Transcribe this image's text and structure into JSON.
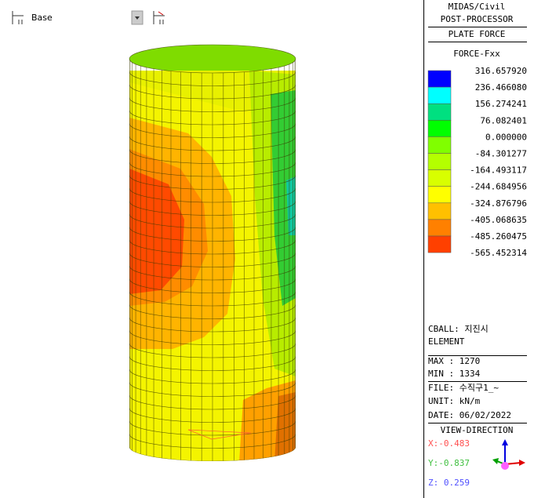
{
  "toolbar": {
    "base_label": "Base"
  },
  "legend": {
    "title": [
      "MIDAS/Civil",
      "POST-PROCESSOR"
    ],
    "result_type": "PLATE FORCE",
    "component": "FORCE-Fxx",
    "levels": [
      "316.657920",
      "236.466080",
      "156.274241",
      "76.082401",
      "0.000000",
      "-84.301277",
      "-164.493117",
      "-244.684956",
      "-324.876796",
      "-405.068635",
      "-485.260475",
      "-565.452314"
    ]
  },
  "info": {
    "cball": "CBALL: 지진시",
    "element": "ELEMENT",
    "max": "MAX : 1270",
    "min": "MIN : 1334",
    "file": "FILE: 수직구1_~",
    "unit": "UNIT: kN/m",
    "date": "DATE: 06/02/2022"
  },
  "view": {
    "title": "VIEW-DIRECTION",
    "x": "X:-0.483",
    "y": "Y:-0.837",
    "z": "Z: 0.259"
  }
}
